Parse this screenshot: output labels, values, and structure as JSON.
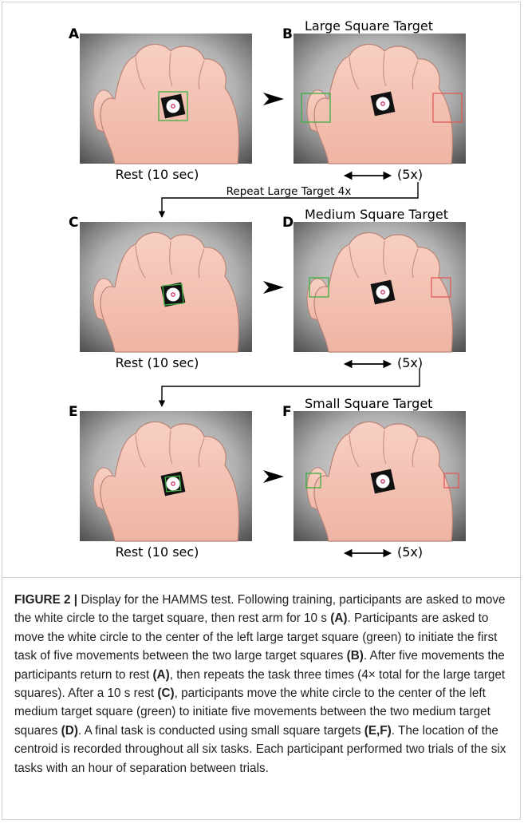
{
  "panels": [
    {
      "label": "A"
    },
    {
      "label": "B",
      "title": "Large Square Target"
    },
    {
      "label": "C"
    },
    {
      "label": "D",
      "title": "Medium Square Target"
    },
    {
      "label": "E"
    },
    {
      "label": "F",
      "title": "Small Square Target"
    }
  ],
  "rest_labels": [
    "Rest (10 sec)",
    "Rest (10 sec)",
    "Rest (10 sec)"
  ],
  "repeat_labels": [
    "(5x)",
    "(5x)",
    "(5x)"
  ],
  "connector_label": "Repeat Large Target 4x",
  "caption": {
    "runs": [
      {
        "text": "FIGURE 2 |",
        "bold": true
      },
      {
        "text": " Display for the HAMMS test. Following training, participants are asked to move the white circle to the target square, then rest arm for 10 s ",
        "bold": false
      },
      {
        "text": "(A)",
        "bold": true
      },
      {
        "text": ". Participants are asked to move the white circle to the center of the left large target square (green) to initiate the first task of five movements between the two large target squares ",
        "bold": false
      },
      {
        "text": "(B)",
        "bold": true
      },
      {
        "text": ". After five movements the participants return to rest ",
        "bold": false
      },
      {
        "text": "(A)",
        "bold": true
      },
      {
        "text": ", then repeats the task three times (4× total for the large target squares). After a 10 s rest ",
        "bold": false
      },
      {
        "text": "(C)",
        "bold": true
      },
      {
        "text": ", participants move the white circle to the center of the left medium target square (green) to initiate five movements between the two medium target squares ",
        "bold": false
      },
      {
        "text": "(D)",
        "bold": true
      },
      {
        "text": ". A final task is conducted using small square targets ",
        "bold": false
      },
      {
        "text": "(E,F)",
        "bold": true
      },
      {
        "text": ". The location of the centroid is recorded throughout all six tasks. Each participant performed two trials of the six tasks with an hour of separation between trials.",
        "bold": false
      }
    ]
  }
}
